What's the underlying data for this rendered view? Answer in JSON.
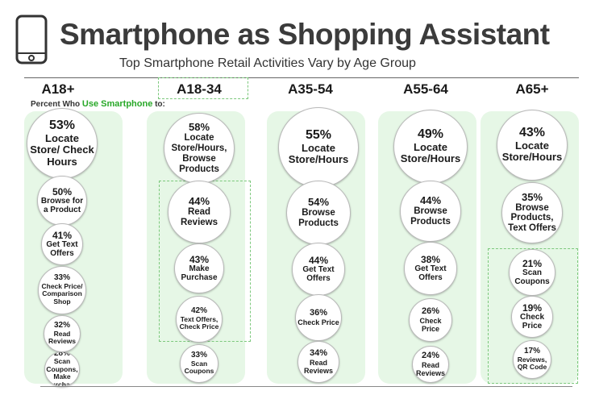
{
  "title": "Smartphone as Shopping Assistant",
  "subtitle": "Top Smartphone Retail Activities Vary by Age Group",
  "note_prefix": "Percent Who ",
  "note_highlight": "Use Smartphone",
  "note_suffix": " to:",
  "colors": {
    "panel": "#e6f7e6",
    "highlight": "#28a828",
    "dashed": "#7cc87c",
    "title": "#3b3b3b"
  },
  "chart_data": {
    "type": "bubble-columns",
    "title": "Smartphone as Shopping Assistant",
    "subtitle": "Top Smartphone Retail Activities Vary by Age Group",
    "unit": "percent",
    "groups": [
      {
        "name": "A18+",
        "items": [
          {
            "value": 53,
            "label": "Locate Store/ Check Hours"
          },
          {
            "value": 50,
            "label": "Browse for a Product"
          },
          {
            "value": 41,
            "label": "Get Text Offers"
          },
          {
            "value": 33,
            "label": "Check Price/ Comparison Shop"
          },
          {
            "value": 32,
            "label": "Read Reviews"
          },
          {
            "value": 28,
            "label": "Scan Coupons, Make Purchase"
          }
        ]
      },
      {
        "name": "A18-34",
        "items": [
          {
            "value": 58,
            "label": "Locate Store/Hours, Browse Products"
          },
          {
            "value": 44,
            "label": "Read Reviews"
          },
          {
            "value": 43,
            "label": "Make Purchase"
          },
          {
            "value": 42,
            "label": "Text Offers, Check Price"
          },
          {
            "value": 33,
            "label": "Scan Coupons"
          }
        ]
      },
      {
        "name": "A35-54",
        "items": [
          {
            "value": 55,
            "label": "Locate Store/Hours"
          },
          {
            "value": 54,
            "label": "Browse Products"
          },
          {
            "value": 44,
            "label": "Get Text Offers"
          },
          {
            "value": 36,
            "label": "Check Price"
          },
          {
            "value": 34,
            "label": "Read Reviews"
          }
        ]
      },
      {
        "name": "A55-64",
        "items": [
          {
            "value": 49,
            "label": "Locate Store/Hours"
          },
          {
            "value": 44,
            "label": "Browse Products"
          },
          {
            "value": 38,
            "label": "Get Text Offers"
          },
          {
            "value": 26,
            "label": "Check Price"
          },
          {
            "value": 24,
            "label": "Read Reviews"
          }
        ]
      },
      {
        "name": "A65+",
        "items": [
          {
            "value": 43,
            "label": "Locate Store/Hours"
          },
          {
            "value": 35,
            "label": "Browse Products, Text Offers"
          },
          {
            "value": 21,
            "label": "Scan Coupons"
          },
          {
            "value": 19,
            "label": "Check Price"
          },
          {
            "value": 17,
            "label": "Reviews, QR Code"
          }
        ]
      }
    ]
  }
}
